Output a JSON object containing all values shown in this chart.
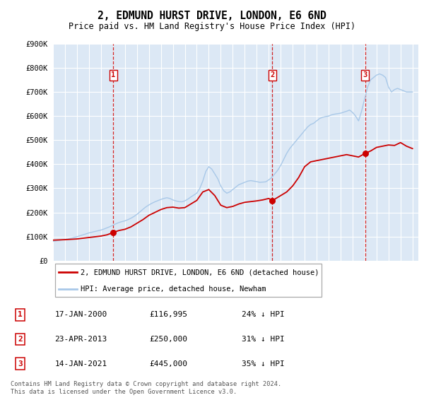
{
  "title": "2, EDMUND HURST DRIVE, LONDON, E6 6ND",
  "subtitle": "Price paid vs. HM Land Registry's House Price Index (HPI)",
  "hpi_color": "#a8c8e8",
  "price_color": "#cc0000",
  "vline_color": "#cc0000",
  "plot_bg": "#dce8f5",
  "ylim": [
    0,
    900000
  ],
  "yticks": [
    0,
    100000,
    200000,
    300000,
    400000,
    500000,
    600000,
    700000,
    800000,
    900000
  ],
  "ytick_labels": [
    "£0",
    "£100K",
    "£200K",
    "£300K",
    "£400K",
    "£500K",
    "£600K",
    "£700K",
    "£800K",
    "£900K"
  ],
  "xmin": 1995.0,
  "xmax": 2025.5,
  "sale_dates_num": [
    2000.04,
    2013.31,
    2021.04
  ],
  "sale_prices": [
    116995,
    250000,
    445000
  ],
  "sale_labels": [
    "1",
    "2",
    "3"
  ],
  "legend_label_price": "2, EDMUND HURST DRIVE, LONDON, E6 6ND (detached house)",
  "legend_label_hpi": "HPI: Average price, detached house, Newham",
  "table_rows": [
    [
      "1",
      "17-JAN-2000",
      "£116,995",
      "24% ↓ HPI"
    ],
    [
      "2",
      "23-APR-2013",
      "£250,000",
      "31% ↓ HPI"
    ],
    [
      "3",
      "14-JAN-2021",
      "£445,000",
      "35% ↓ HPI"
    ]
  ],
  "footer": "Contains HM Land Registry data © Crown copyright and database right 2024.\nThis data is licensed under the Open Government Licence v3.0.",
  "hpi_x": [
    1995.0,
    1995.25,
    1995.5,
    1995.75,
    1996.0,
    1996.25,
    1996.5,
    1996.75,
    1997.0,
    1997.25,
    1997.5,
    1997.75,
    1998.0,
    1998.25,
    1998.5,
    1998.75,
    1999.0,
    1999.25,
    1999.5,
    1999.75,
    2000.0,
    2000.25,
    2000.5,
    2000.75,
    2001.0,
    2001.25,
    2001.5,
    2001.75,
    2002.0,
    2002.25,
    2002.5,
    2002.75,
    2003.0,
    2003.25,
    2003.5,
    2003.75,
    2004.0,
    2004.25,
    2004.5,
    2004.75,
    2005.0,
    2005.25,
    2005.5,
    2005.75,
    2006.0,
    2006.25,
    2006.5,
    2006.75,
    2007.0,
    2007.25,
    2007.5,
    2007.75,
    2008.0,
    2008.25,
    2008.5,
    2008.75,
    2009.0,
    2009.25,
    2009.5,
    2009.75,
    2010.0,
    2010.25,
    2010.5,
    2010.75,
    2011.0,
    2011.25,
    2011.5,
    2011.75,
    2012.0,
    2012.25,
    2012.5,
    2012.75,
    2013.0,
    2013.25,
    2013.5,
    2013.75,
    2014.0,
    2014.25,
    2014.5,
    2014.75,
    2015.0,
    2015.25,
    2015.5,
    2015.75,
    2016.0,
    2016.25,
    2016.5,
    2016.75,
    2017.0,
    2017.25,
    2017.5,
    2017.75,
    2018.0,
    2018.25,
    2018.5,
    2018.75,
    2019.0,
    2019.25,
    2019.5,
    2019.75,
    2020.0,
    2020.25,
    2020.5,
    2020.75,
    2021.0,
    2021.25,
    2021.5,
    2021.75,
    2022.0,
    2022.25,
    2022.5,
    2022.75,
    2023.0,
    2023.25,
    2023.5,
    2023.75,
    2024.0,
    2024.25,
    2024.5,
    2024.75,
    2025.0
  ],
  "hpi_y": [
    80000,
    82000,
    84000,
    86000,
    88000,
    90000,
    93000,
    96000,
    99000,
    103000,
    107000,
    111000,
    115000,
    118000,
    121000,
    124000,
    127000,
    131000,
    136000,
    141000,
    147000,
    153000,
    158000,
    162000,
    165000,
    170000,
    176000,
    183000,
    192000,
    202000,
    213000,
    223000,
    231000,
    238000,
    244000,
    249000,
    254000,
    258000,
    261000,
    258000,
    252000,
    248000,
    245000,
    244000,
    248000,
    255000,
    264000,
    272000,
    280000,
    300000,
    330000,
    370000,
    390000,
    380000,
    360000,
    340000,
    310000,
    290000,
    280000,
    285000,
    295000,
    305000,
    315000,
    320000,
    325000,
    330000,
    332000,
    330000,
    328000,
    325000,
    326000,
    327000,
    335000,
    345000,
    360000,
    375000,
    395000,
    420000,
    445000,
    465000,
    480000,
    495000,
    510000,
    525000,
    540000,
    555000,
    565000,
    570000,
    580000,
    590000,
    595000,
    598000,
    600000,
    605000,
    608000,
    610000,
    612000,
    616000,
    620000,
    625000,
    615000,
    600000,
    580000,
    620000,
    670000,
    720000,
    750000,
    760000,
    770000,
    775000,
    770000,
    760000,
    720000,
    700000,
    710000,
    715000,
    710000,
    705000,
    700000,
    700000,
    700000
  ],
  "price_x": [
    1995.0,
    1996.0,
    1997.0,
    1997.5,
    1998.0,
    1998.5,
    1999.0,
    1999.5,
    2000.04,
    2000.5,
    2001.0,
    2001.5,
    2002.0,
    2002.5,
    2003.0,
    2003.5,
    2004.0,
    2004.5,
    2005.0,
    2005.5,
    2006.0,
    2006.5,
    2007.0,
    2007.5,
    2008.0,
    2008.5,
    2009.0,
    2009.5,
    2010.0,
    2010.5,
    2011.0,
    2011.5,
    2012.0,
    2012.5,
    2013.0,
    2013.31,
    2013.5,
    2014.0,
    2014.5,
    2015.0,
    2015.5,
    2016.0,
    2016.5,
    2017.0,
    2017.5,
    2018.0,
    2018.5,
    2019.0,
    2019.5,
    2020.0,
    2020.5,
    2021.04,
    2021.5,
    2022.0,
    2022.5,
    2023.0,
    2023.5,
    2024.0,
    2024.5,
    2025.0
  ],
  "price_y": [
    85000,
    87000,
    90000,
    93000,
    96000,
    99000,
    102000,
    107000,
    116995,
    125000,
    130000,
    140000,
    155000,
    170000,
    188000,
    200000,
    212000,
    220000,
    222000,
    218000,
    220000,
    235000,
    250000,
    285000,
    295000,
    270000,
    230000,
    220000,
    225000,
    235000,
    242000,
    245000,
    248000,
    252000,
    258000,
    250000,
    255000,
    270000,
    285000,
    310000,
    345000,
    390000,
    410000,
    415000,
    420000,
    425000,
    430000,
    435000,
    440000,
    435000,
    430000,
    445000,
    455000,
    470000,
    475000,
    480000,
    478000,
    490000,
    475000,
    465000
  ]
}
